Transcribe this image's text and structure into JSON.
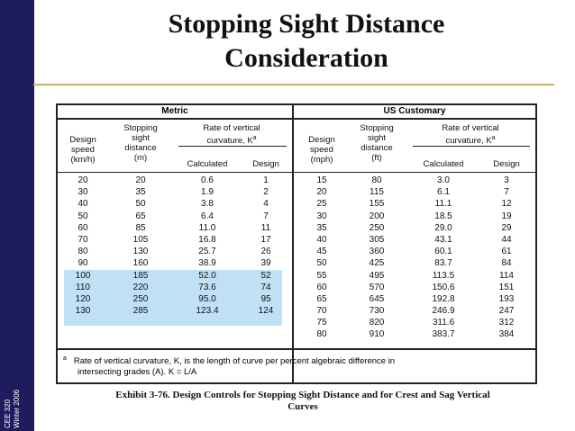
{
  "slide": {
    "title_line1": "Stopping Sight Distance",
    "title_line2": "Consideration",
    "side_line1": "CEE 320",
    "side_line2": "Winter 2006"
  },
  "table": {
    "metric": {
      "section": "Metric",
      "headers": {
        "speed": [
          "Design",
          "speed",
          "(km/h)"
        ],
        "ssd": [
          "Stopping",
          "sight",
          "distance",
          "(m)"
        ],
        "rate": [
          "Rate of vertical",
          "curvature, K"
        ],
        "rate_sup": "a",
        "calc": "Calculated",
        "design": "Design"
      },
      "speed": [
        "20",
        "30",
        "40",
        "50",
        "60",
        "70",
        "80",
        "90",
        "100",
        "110",
        "120",
        "130"
      ],
      "ssd": [
        "20",
        "35",
        "50",
        "65",
        "85",
        "105",
        "130",
        "160",
        "185",
        "220",
        "250",
        "285"
      ],
      "calc": [
        "0.6",
        "1.9",
        "3.8",
        "6.4",
        "11.0",
        "16.8",
        "25.7",
        "38.9",
        "52.0",
        "73.6",
        "95.0",
        "123.4"
      ],
      "design": [
        "1",
        "2",
        "4",
        "7",
        "11",
        "17",
        "26",
        "39",
        "52",
        "74",
        "95",
        "124"
      ],
      "highlight_color": "#bfe0f5"
    },
    "us": {
      "section": "US Customary",
      "headers": {
        "speed": [
          "Design",
          "speed",
          "(mph)"
        ],
        "ssd": [
          "Stopping",
          "sight",
          "distance",
          "(ft)"
        ],
        "rate": [
          "Rate of vertical",
          "curvature, K"
        ],
        "rate_sup": "a",
        "calc": "Calculated",
        "design": "Design"
      },
      "speed": [
        "15",
        "20",
        "25",
        "30",
        "35",
        "40",
        "45",
        "50",
        "55",
        "60",
        "65",
        "70",
        "75",
        "80"
      ],
      "ssd": [
        "80",
        "115",
        "155",
        "200",
        "250",
        "305",
        "360",
        "425",
        "495",
        "570",
        "645",
        "730",
        "820",
        "910"
      ],
      "calc": [
        "3.0",
        "6.1",
        "11.1",
        "18.5",
        "29.0",
        "43.1",
        "60.1",
        "83.7",
        "113.5",
        "150.6",
        "192.8",
        "246.9",
        "311.6",
        "383.7"
      ],
      "design": [
        "3",
        "7",
        "12",
        "19",
        "29",
        "44",
        "61",
        "84",
        "114",
        "151",
        "193",
        "247",
        "312",
        "384"
      ]
    },
    "footnote_mark": "a",
    "footnote_line1": "Rate of vertical curvature, K, is the length of curve per percent algebraic difference in",
    "footnote_line2": "intersecting grades (A).  K = L/A"
  },
  "caption": {
    "line1": "Exhibit 3-76.  Design Controls for Stopping Sight Distance and for Crest and Sag Vertical",
    "line2": "Curves"
  },
  "colors": {
    "sidebar": "#1f1c5e",
    "accent_rule": "#c9b46a"
  }
}
